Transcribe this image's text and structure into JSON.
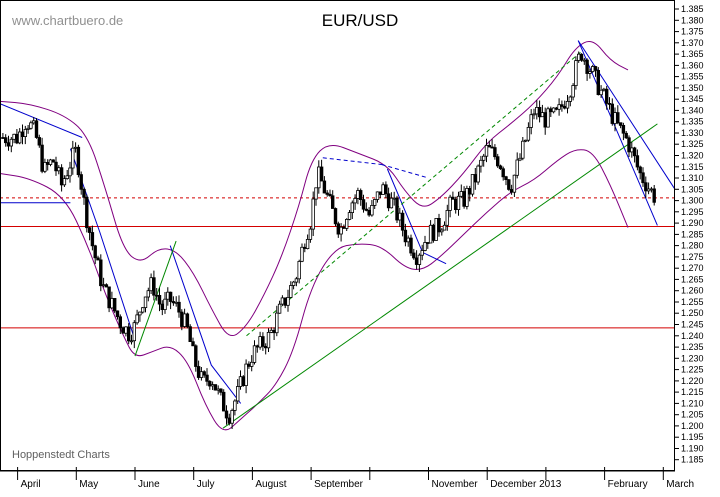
{
  "watermark_top": "www.chartbuero.de",
  "watermark_bottom": "Hoppenstedt Charts",
  "chart_data": {
    "type": "candlestick",
    "title": "EUR/USD",
    "y_axis_position": "right",
    "ylim": [
      1.18,
      1.389
    ],
    "y_ticks": [
      "1.185",
      "1.190",
      "1.195",
      "1.200",
      "1.205",
      "1.210",
      "1.215",
      "1.220",
      "1.225",
      "1.230",
      "1.235",
      "1.240",
      "1.245",
      "1.250",
      "1.255",
      "1.260",
      "1.265",
      "1.270",
      "1.275",
      "1.280",
      "1.285",
      "1.290",
      "1.295",
      "1.300",
      "1.305",
      "1.310",
      "1.315",
      "1.320",
      "1.325",
      "1.330",
      "1.335",
      "1.340",
      "1.345",
      "1.350",
      "1.355",
      "1.360",
      "1.365",
      "1.370",
      "1.375",
      "1.380",
      "1.385"
    ],
    "x_months": [
      "April",
      "May",
      "June",
      "July",
      "August",
      "September",
      "November",
      "December 2013",
      "February",
      "March"
    ],
    "x_month_index": [
      0,
      1,
      2,
      3,
      4,
      5,
      7,
      8,
      10,
      11
    ],
    "x_range_months": [
      -0.3,
      11.2
    ],
    "closes": [
      [
        0.0,
        1.328
      ],
      [
        0.15,
        1.336
      ],
      [
        0.3,
        1.33
      ],
      [
        0.45,
        1.313
      ],
      [
        0.6,
        1.318
      ],
      [
        0.75,
        1.307
      ],
      [
        0.9,
        1.317
      ],
      [
        1.0,
        1.322
      ],
      [
        1.15,
        1.296
      ],
      [
        1.3,
        1.277
      ],
      [
        1.45,
        1.262
      ],
      [
        1.6,
        1.254
      ],
      [
        1.75,
        1.246
      ],
      [
        1.9,
        1.241
      ],
      [
        2.0,
        1.244
      ],
      [
        2.15,
        1.258
      ],
      [
        2.3,
        1.263
      ],
      [
        2.45,
        1.252
      ],
      [
        2.6,
        1.256
      ],
      [
        2.75,
        1.251
      ],
      [
        2.9,
        1.242
      ],
      [
        3.0,
        1.23
      ],
      [
        3.15,
        1.219
      ],
      [
        3.3,
        1.222
      ],
      [
        3.45,
        1.212
      ],
      [
        3.6,
        1.205
      ],
      [
        3.75,
        1.214
      ],
      [
        3.9,
        1.226
      ],
      [
        4.0,
        1.232
      ],
      [
        4.15,
        1.236
      ],
      [
        4.3,
        1.24
      ],
      [
        4.45,
        1.25
      ],
      [
        4.6,
        1.258
      ],
      [
        4.75,
        1.267
      ],
      [
        4.9,
        1.284
      ],
      [
        5.0,
        1.292
      ],
      [
        5.1,
        1.312
      ],
      [
        5.2,
        1.307
      ],
      [
        5.35,
        1.296
      ],
      [
        5.5,
        1.287
      ],
      [
        5.65,
        1.298
      ],
      [
        5.8,
        1.303
      ],
      [
        6.0,
        1.293
      ],
      [
        6.2,
        1.306
      ],
      [
        6.4,
        1.298
      ],
      [
        6.6,
        1.285
      ],
      [
        6.8,
        1.276
      ],
      [
        7.0,
        1.285
      ],
      [
        7.2,
        1.289
      ],
      [
        7.4,
        1.299
      ],
      [
        7.6,
        1.3
      ],
      [
        7.8,
        1.31
      ],
      [
        8.0,
        1.323
      ],
      [
        8.2,
        1.318
      ],
      [
        8.4,
        1.306
      ],
      [
        8.6,
        1.322
      ],
      [
        8.8,
        1.34
      ],
      [
        9.0,
        1.336
      ],
      [
        9.2,
        1.338
      ],
      [
        9.4,
        1.349
      ],
      [
        9.6,
        1.366
      ],
      [
        9.8,
        1.356
      ],
      [
        10.0,
        1.345
      ],
      [
        10.2,
        1.334
      ],
      [
        10.4,
        1.326
      ],
      [
        10.6,
        1.312
      ],
      [
        10.75,
        1.306
      ],
      [
        10.85,
        1.302
      ]
    ],
    "bollinger_upper": [
      [
        -0.3,
        1.344
      ],
      [
        0.2,
        1.343
      ],
      [
        0.8,
        1.338
      ],
      [
        1.2,
        1.329
      ],
      [
        1.5,
        1.305
      ],
      [
        1.8,
        1.278
      ],
      [
        2.1,
        1.272
      ],
      [
        2.4,
        1.279
      ],
      [
        2.7,
        1.278
      ],
      [
        3.0,
        1.268
      ],
      [
        3.3,
        1.252
      ],
      [
        3.6,
        1.238
      ],
      [
        3.9,
        1.244
      ],
      [
        4.2,
        1.258
      ],
      [
        4.5,
        1.275
      ],
      [
        4.8,
        1.298
      ],
      [
        5.0,
        1.318
      ],
      [
        5.3,
        1.326
      ],
      [
        5.8,
        1.321
      ],
      [
        6.3,
        1.316
      ],
      [
        6.6,
        1.304
      ],
      [
        6.9,
        1.296
      ],
      [
        7.2,
        1.301
      ],
      [
        7.6,
        1.312
      ],
      [
        8.0,
        1.326
      ],
      [
        8.4,
        1.334
      ],
      [
        8.8,
        1.343
      ],
      [
        9.2,
        1.355
      ],
      [
        9.5,
        1.368
      ],
      [
        9.8,
        1.372
      ],
      [
        10.1,
        1.362
      ],
      [
        10.4,
        1.358
      ]
    ],
    "bollinger_lower": [
      [
        -0.3,
        1.312
      ],
      [
        0.2,
        1.31
      ],
      [
        0.8,
        1.302
      ],
      [
        1.2,
        1.28
      ],
      [
        1.5,
        1.258
      ],
      [
        1.8,
        1.24
      ],
      [
        2.0,
        1.23
      ],
      [
        2.3,
        1.233
      ],
      [
        2.6,
        1.236
      ],
      [
        2.9,
        1.229
      ],
      [
        3.2,
        1.209
      ],
      [
        3.5,
        1.196
      ],
      [
        3.8,
        1.203
      ],
      [
        4.1,
        1.21
      ],
      [
        4.4,
        1.218
      ],
      [
        4.7,
        1.233
      ],
      [
        5.0,
        1.262
      ],
      [
        5.4,
        1.279
      ],
      [
        5.8,
        1.281
      ],
      [
        6.2,
        1.28
      ],
      [
        6.6,
        1.27
      ],
      [
        6.9,
        1.269
      ],
      [
        7.2,
        1.275
      ],
      [
        7.6,
        1.285
      ],
      [
        8.0,
        1.295
      ],
      [
        8.4,
        1.304
      ],
      [
        8.8,
        1.309
      ],
      [
        9.2,
        1.318
      ],
      [
        9.5,
        1.323
      ],
      [
        9.8,
        1.322
      ],
      [
        10.1,
        1.307
      ],
      [
        10.4,
        1.288
      ]
    ],
    "horizontal_lines": [
      {
        "y": 1.2885,
        "color": "#d40000",
        "style": "solid"
      },
      {
        "y": 1.2435,
        "color": "#d40000",
        "style": "solid"
      },
      {
        "y": 1.3012,
        "color": "#d40000",
        "style": "dashed"
      }
    ],
    "trend_lines": [
      {
        "points": [
          [
            -0.3,
            1.343
          ],
          [
            1.1,
            1.328
          ]
        ],
        "color": "#0000cc",
        "style": "solid"
      },
      {
        "points": [
          [
            -0.3,
            1.299
          ],
          [
            0.9,
            1.299
          ]
        ],
        "color": "#0000cc",
        "style": "solid"
      },
      {
        "points": [
          [
            0.9,
            1.323
          ],
          [
            1.4,
            1.286
          ],
          [
            2.0,
            1.238
          ]
        ],
        "color": "#0000cc",
        "style": "solid"
      },
      {
        "points": [
          [
            2.6,
            1.28
          ],
          [
            3.3,
            1.227
          ],
          [
            3.8,
            1.21
          ]
        ],
        "color": "#0000cc",
        "style": "solid"
      },
      {
        "points": [
          [
            5.2,
            1.319
          ],
          [
            6.2,
            1.316
          ]
        ],
        "color": "#0000cc",
        "style": "dashed"
      },
      {
        "points": [
          [
            6.2,
            1.316
          ],
          [
            7.0,
            1.31
          ]
        ],
        "color": "#0000cc",
        "style": "dashed"
      },
      {
        "points": [
          [
            6.3,
            1.314
          ],
          [
            6.9,
            1.277
          ],
          [
            7.3,
            1.272
          ]
        ],
        "color": "#0000cc",
        "style": "solid"
      },
      {
        "points": [
          [
            9.55,
            1.371
          ],
          [
            10.9,
            1.289
          ]
        ],
        "color": "#0000cc",
        "style": "solid"
      },
      {
        "points": [
          [
            9.55,
            1.371
          ],
          [
            11.2,
            1.305
          ]
        ],
        "color": "#0000cc",
        "style": "solid"
      },
      {
        "points": [
          [
            2.0,
            1.231
          ],
          [
            2.7,
            1.282
          ]
        ],
        "color": "#008800",
        "style": "solid"
      },
      {
        "points": [
          [
            3.5,
            1.199
          ],
          [
            10.9,
            1.334
          ]
        ],
        "color": "#008800",
        "style": "solid"
      },
      {
        "points": [
          [
            3.9,
            1.24
          ],
          [
            9.6,
            1.366
          ]
        ],
        "color": "#008800",
        "style": "dashed"
      }
    ],
    "colors": {
      "candles": "#000000",
      "bollinger": "#800080",
      "support_resistance": "#d40000",
      "trend_blue": "#0000cc",
      "trend_green": "#008800",
      "frame": "#000000"
    }
  }
}
